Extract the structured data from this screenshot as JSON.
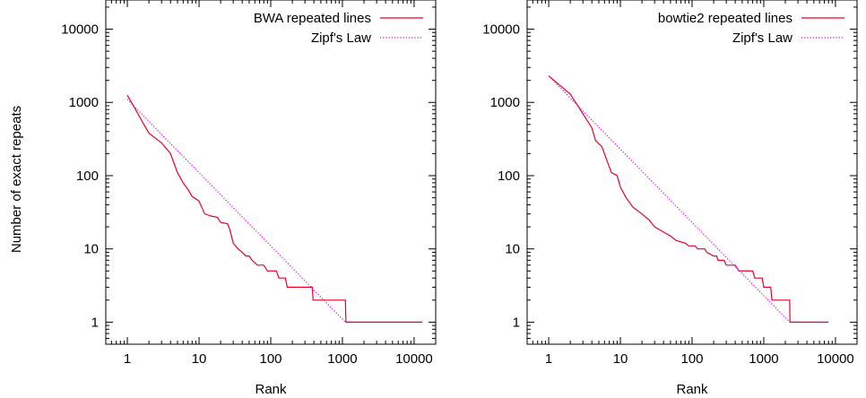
{
  "chart_data": [
    {
      "type": "line",
      "xlabel": "Rank",
      "ylabel": "Number of exact repeats",
      "xscale": "log",
      "yscale": "log",
      "xlim": [
        0.5,
        20000
      ],
      "ylim": [
        0.5,
        25000
      ],
      "xticks": [
        1,
        10,
        100,
        1000,
        10000
      ],
      "xtick_labels": [
        "1",
        "10",
        "100",
        "1000",
        "10000"
      ],
      "yticks": [
        1,
        10,
        100,
        1000,
        10000
      ],
      "ytick_labels": [
        "1",
        "10",
        "100",
        "1000",
        "10000"
      ],
      "grid": false,
      "legend_position": "top-right",
      "series": [
        {
          "name": "BWA repeated lines",
          "color": "#e8002a",
          "style": "solid",
          "points": [
            [
              1,
              1250
            ],
            [
              1.3,
              800
            ],
            [
              1.7,
              500
            ],
            [
              2,
              380
            ],
            [
              3,
              280
            ],
            [
              4,
              200
            ],
            [
              5,
              110
            ],
            [
              6,
              80
            ],
            [
              7,
              65
            ],
            [
              8,
              52
            ],
            [
              10,
              45
            ],
            [
              12,
              30
            ],
            [
              15,
              28
            ],
            [
              18,
              27
            ],
            [
              20,
              23
            ],
            [
              25,
              22
            ],
            [
              27,
              18
            ],
            [
              30,
              12
            ],
            [
              35,
              10
            ],
            [
              40,
              9
            ],
            [
              45,
              8
            ],
            [
              50,
              8
            ],
            [
              55,
              7
            ],
            [
              65,
              6
            ],
            [
              80,
              6
            ],
            [
              90,
              5
            ],
            [
              120,
              5
            ],
            [
              130,
              4
            ],
            [
              160,
              4
            ],
            [
              170,
              3
            ],
            [
              380,
              3
            ],
            [
              390,
              2
            ],
            [
              1100,
              2
            ],
            [
              1120,
              1
            ],
            [
              13000,
              1
            ]
          ]
        },
        {
          "name": "Zipf's Law",
          "color": "#d400ff",
          "style": "dotted",
          "points": [
            [
              1,
              1100
            ],
            [
              1100,
              1
            ]
          ]
        }
      ]
    },
    {
      "type": "line",
      "xlabel": "Rank",
      "ylabel": "",
      "xscale": "log",
      "yscale": "log",
      "xlim": [
        0.5,
        20000
      ],
      "ylim": [
        0.5,
        25000
      ],
      "xticks": [
        1,
        10,
        100,
        1000,
        10000
      ],
      "xtick_labels": [
        "1",
        "10",
        "100",
        "1000",
        "10000"
      ],
      "yticks": [
        1,
        10,
        100,
        1000,
        10000
      ],
      "ytick_labels": [
        "1",
        "10",
        "100",
        "1000",
        "10000"
      ],
      "grid": false,
      "legend_position": "top-right",
      "series": [
        {
          "name": "bowtie2 repeated lines",
          "color": "#e8002a",
          "style": "solid",
          "points": [
            [
              1,
              2300
            ],
            [
              2,
              1300
            ],
            [
              3,
              700
            ],
            [
              4,
              450
            ],
            [
              4.5,
              300
            ],
            [
              5.5,
              250
            ],
            [
              6.5,
              160
            ],
            [
              7.5,
              110
            ],
            [
              9,
              100
            ],
            [
              10,
              70
            ],
            [
              12,
              50
            ],
            [
              15,
              37
            ],
            [
              20,
              30
            ],
            [
              25,
              25
            ],
            [
              30,
              20
            ],
            [
              40,
              17
            ],
            [
              50,
              15
            ],
            [
              60,
              13
            ],
            [
              80,
              12
            ],
            [
              90,
              11
            ],
            [
              110,
              11
            ],
            [
              120,
              10
            ],
            [
              150,
              10
            ],
            [
              160,
              9
            ],
            [
              200,
              8
            ],
            [
              220,
              8
            ],
            [
              230,
              7
            ],
            [
              280,
              7
            ],
            [
              300,
              6
            ],
            [
              400,
              6
            ],
            [
              450,
              5
            ],
            [
              700,
              5
            ],
            [
              750,
              4
            ],
            [
              950,
              4
            ],
            [
              1000,
              3
            ],
            [
              1250,
              3
            ],
            [
              1300,
              2
            ],
            [
              2300,
              2
            ],
            [
              2320,
              1
            ],
            [
              8000,
              1
            ]
          ]
        },
        {
          "name": "Zipf's Law",
          "color": "#d400ff",
          "style": "dotted",
          "points": [
            [
              1,
              2300
            ],
            [
              2300,
              1
            ]
          ]
        }
      ]
    }
  ]
}
